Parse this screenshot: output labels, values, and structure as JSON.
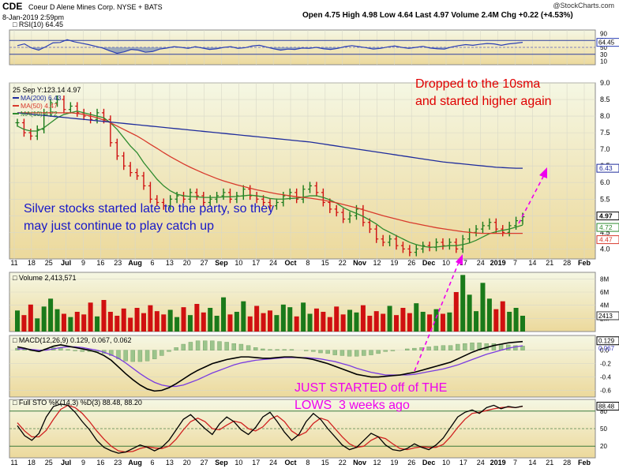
{
  "header": {
    "symbol": "CDE",
    "company": "Coeur D Alene Mines Corp.  NYSE + BATS",
    "date": "8-Jan-2019 2:59pm",
    "quote": "Open 4.75  High 4.98  Low 4.64  Last 4.97  Volume 2.4M  Chg +0.22 (+4.53%)",
    "source": "@StockCharts.com"
  },
  "annotations": {
    "dropped": "Dropped to the 10sma\nand started higher again",
    "silver": "Silver stocks started late to the party, so they\nmay just continue to play catch up",
    "lows": "JUST STARTED off of THE\nLOWS  3 weeks ago"
  },
  "colors": {
    "panel_bg_top": "#f5f7e3",
    "panel_bg_bottom": "#ecd99c",
    "up": "#1a7a1a",
    "down": "#d01010",
    "ma200": "#1f2c9c",
    "ma50": "#d83a2c",
    "ma10": "#2e8b2e",
    "rsi": "#2b3fb5",
    "annotation_red": "#e00000",
    "annotation_blue": "#1818c8",
    "annotation_magenta": "#ee00ee"
  },
  "chart_data": [
    {
      "type": "line",
      "title": "RSI(10) 64.45",
      "ylim": [
        0,
        100
      ],
      "yticks": [
        "90",
        "70",
        "50",
        "30",
        "10"
      ],
      "last_value_label": "64.45",
      "series": [
        {
          "name": "RSI(10)",
          "values": [
            55,
            60,
            48,
            42,
            52,
            63,
            64,
            72,
            66,
            62,
            58,
            53,
            48,
            40,
            33,
            37,
            44,
            42,
            36,
            38,
            45,
            48,
            52,
            50,
            47,
            52,
            48,
            44,
            46,
            50,
            52,
            47,
            49,
            54,
            56,
            51,
            46,
            42,
            45,
            44,
            48,
            47,
            50,
            46,
            44,
            47,
            52,
            55,
            52,
            49,
            45,
            47,
            51,
            54,
            50,
            47,
            50,
            53,
            48,
            46,
            45,
            51,
            55,
            58,
            56,
            59,
            61,
            60,
            56,
            60,
            62,
            64.45
          ]
        }
      ]
    },
    {
      "type": "line",
      "title": "25 Sep Y:123.14  4.97",
      "ylim": [
        3.7,
        9.0
      ],
      "yticks": [
        "9.0",
        "8.5",
        "8.0",
        "7.5",
        "7.0",
        "6.5",
        "6.0",
        "5.5",
        "5.0",
        "4.5",
        "4.0"
      ],
      "xticks": [
        "11",
        "18",
        "25",
        "Jul",
        "9",
        "16",
        "23",
        "Aug",
        "6",
        "13",
        "20",
        "27",
        "Sep",
        "10",
        "17",
        "24",
        "Oct",
        "8",
        "15",
        "22",
        "Nov",
        "12",
        "19",
        "26",
        "Dec",
        "10",
        "17",
        "24",
        "2019",
        "7",
        "14",
        "21",
        "28",
        "Feb"
      ],
      "legend": [
        {
          "name": "MA(200)",
          "value": "6.43"
        },
        {
          "name": "MA(50)",
          "value": "4.47"
        },
        {
          "name": "MA(10)",
          "value": "4.72"
        }
      ],
      "last_labels": {
        "close": "4.97",
        "ma10": "4.72",
        "ma50": "4.47",
        "ma200": "6.43"
      },
      "series": [
        {
          "name": "Close",
          "values": [
            7.8,
            7.5,
            7.4,
            7.6,
            8.1,
            8.4,
            8.5,
            8.2,
            8.3,
            8.1,
            8.0,
            7.9,
            8.1,
            7.9,
            7.2,
            6.8,
            6.5,
            6.3,
            6.2,
            5.9,
            5.5,
            5.4,
            5.3,
            5.5,
            5.6,
            5.5,
            5.7,
            5.6,
            5.4,
            5.5,
            5.6,
            5.7,
            5.5,
            5.6,
            5.8,
            5.6,
            5.5,
            5.4,
            5.3,
            5.4,
            5.6,
            5.7,
            5.5,
            5.8,
            5.9,
            5.7,
            5.4,
            5.2,
            5.1,
            4.9,
            5.0,
            5.2,
            4.8,
            4.6,
            4.3,
            4.2,
            4.3,
            4.1,
            4.0,
            3.9,
            4.0,
            4.1,
            4.05,
            4.2,
            4.1,
            4.2,
            4.0,
            4.3,
            4.5,
            4.6,
            4.7,
            4.8,
            4.6,
            4.5,
            4.7,
            4.85,
            4.97
          ]
        },
        {
          "name": "MA(10)",
          "values": [
            7.7,
            7.6,
            7.55,
            7.55,
            7.65,
            7.8,
            7.95,
            8.05,
            8.1,
            8.15,
            8.1,
            8.05,
            8.0,
            7.95,
            7.8,
            7.6,
            7.35,
            7.1,
            6.9,
            6.6,
            6.35,
            6.1,
            5.9,
            5.75,
            5.65,
            5.6,
            5.58,
            5.57,
            5.55,
            5.55,
            5.55,
            5.57,
            5.57,
            5.58,
            5.6,
            5.62,
            5.6,
            5.57,
            5.52,
            5.5,
            5.5,
            5.52,
            5.53,
            5.56,
            5.6,
            5.6,
            5.55,
            5.48,
            5.38,
            5.25,
            5.15,
            5.07,
            4.98,
            4.87,
            4.75,
            4.6,
            4.5,
            4.4,
            4.3,
            4.2,
            4.13,
            4.08,
            4.05,
            4.06,
            4.08,
            4.1,
            4.1,
            4.13,
            4.18,
            4.26,
            4.36,
            4.46,
            4.52,
            4.56,
            4.6,
            4.66,
            4.72
          ]
        },
        {
          "name": "MA(50)",
          "values": [
            8.1,
            8.1,
            8.1,
            8.1,
            8.1,
            8.1,
            8.1,
            8.1,
            8.1,
            8.08,
            8.05,
            8.0,
            7.95,
            7.88,
            7.8,
            7.7,
            7.6,
            7.5,
            7.4,
            7.28,
            7.15,
            7.03,
            6.9,
            6.78,
            6.67,
            6.56,
            6.46,
            6.37,
            6.28,
            6.2,
            6.12,
            6.05,
            5.99,
            5.93,
            5.88,
            5.83,
            5.78,
            5.74,
            5.7,
            5.66,
            5.63,
            5.6,
            5.57,
            5.55,
            5.53,
            5.5,
            5.47,
            5.43,
            5.39,
            5.34,
            5.29,
            5.24,
            5.18,
            5.12,
            5.06,
            5.0,
            4.95,
            4.9,
            4.85,
            4.8,
            4.76,
            4.72,
            4.68,
            4.64,
            4.61,
            4.58,
            4.55,
            4.52,
            4.5,
            4.48,
            4.47,
            4.47,
            4.47,
            4.47,
            4.47,
            4.47,
            4.47
          ]
        },
        {
          "name": "MA(200)",
          "values": [
            8.1,
            8.08,
            8.06,
            8.04,
            8.02,
            8.0,
            7.98,
            7.96,
            7.94,
            7.92,
            7.9,
            7.88,
            7.86,
            7.84,
            7.82,
            7.8,
            7.78,
            7.76,
            7.74,
            7.72,
            7.7,
            7.68,
            7.66,
            7.64,
            7.62,
            7.6,
            7.58,
            7.56,
            7.54,
            7.52,
            7.5,
            7.48,
            7.46,
            7.44,
            7.42,
            7.4,
            7.38,
            7.36,
            7.34,
            7.32,
            7.3,
            7.28,
            7.26,
            7.24,
            7.22,
            7.19,
            7.16,
            7.13,
            7.1,
            7.07,
            7.04,
            7.01,
            6.98,
            6.95,
            6.92,
            6.89,
            6.86,
            6.83,
            6.8,
            6.77,
            6.74,
            6.71,
            6.68,
            6.65,
            6.62,
            6.6,
            6.58,
            6.56,
            6.54,
            6.52,
            6.5,
            6.48,
            6.46,
            6.45,
            6.44,
            6.43,
            6.43
          ]
        }
      ]
    },
    {
      "type": "bar",
      "title": "Volume 2,413,571",
      "ylim": [
        0,
        9
      ],
      "yticks": [
        "8M",
        "6M",
        "4M",
        "2M"
      ],
      "last_value_label": "2413",
      "series": [
        {
          "name": "Volume (M)",
          "values": [
            3.2,
            2.5,
            4.1,
            2.0,
            3.8,
            5.0,
            3.4,
            2.7,
            2.2,
            3.0,
            2.6,
            4.4,
            2.3,
            4.8,
            3.0,
            2.4,
            3.5,
            2.1,
            3.6,
            2.8,
            4.0,
            3.1,
            2.6,
            3.3,
            2.2,
            3.7,
            2.5,
            4.2,
            2.9,
            3.6,
            2.4,
            5.2,
            2.6,
            3.0,
            4.6,
            2.3,
            3.9,
            2.8,
            3.2,
            2.5,
            4.1,
            3.7,
            2.3,
            4.4,
            2.7,
            3.5,
            3.0,
            2.2,
            3.8,
            2.6,
            3.3,
            2.9,
            4.0,
            2.4,
            3.1,
            2.7,
            3.9,
            2.5,
            3.6,
            2.8,
            4.3,
            3.0,
            2.6,
            3.4,
            2.7,
            2.9,
            6.0,
            8.6,
            5.6,
            3.1,
            7.4,
            5.0,
            3.4,
            4.6,
            3.0,
            3.6,
            2.4
          ]
        }
      ]
    },
    {
      "type": "line",
      "title": "MACD(12,26,9) 0.129, 0.067, 0.062",
      "ylim": [
        -0.7,
        0.22
      ],
      "yticks": [
        "0.0",
        "-0.2",
        "-0.4",
        "-0.6"
      ],
      "last_labels": {
        "macd": "0.129",
        "signal": "0.067"
      },
      "series": [
        {
          "name": "MACD",
          "values": [
            0.05,
            0.03,
            0.0,
            -0.02,
            0.02,
            0.06,
            0.08,
            0.06,
            0.04,
            0.02,
            0.0,
            -0.03,
            -0.08,
            -0.15,
            -0.25,
            -0.35,
            -0.44,
            -0.52,
            -0.58,
            -0.61,
            -0.6,
            -0.56,
            -0.5,
            -0.43,
            -0.36,
            -0.3,
            -0.25,
            -0.2,
            -0.17,
            -0.14,
            -0.12,
            -0.1,
            -0.1,
            -0.11,
            -0.12,
            -0.12,
            -0.11,
            -0.1,
            -0.1,
            -0.11,
            -0.12,
            -0.14,
            -0.17,
            -0.2,
            -0.24,
            -0.28,
            -0.32,
            -0.36,
            -0.38,
            -0.4,
            -0.4,
            -0.39,
            -0.38,
            -0.37,
            -0.35,
            -0.33,
            -0.3,
            -0.27,
            -0.24,
            -0.21,
            -0.18,
            -0.13,
            -0.08,
            -0.03,
            0.01,
            0.04,
            0.07,
            0.09,
            0.11,
            0.12,
            0.129
          ]
        },
        {
          "name": "Signal",
          "values": [
            0.02,
            0.02,
            0.01,
            0.0,
            0.0,
            0.02,
            0.04,
            0.05,
            0.05,
            0.04,
            0.02,
            0.0,
            -0.03,
            -0.07,
            -0.12,
            -0.19,
            -0.27,
            -0.35,
            -0.42,
            -0.48,
            -0.52,
            -0.54,
            -0.54,
            -0.52,
            -0.48,
            -0.44,
            -0.39,
            -0.34,
            -0.3,
            -0.26,
            -0.22,
            -0.19,
            -0.17,
            -0.15,
            -0.14,
            -0.13,
            -0.12,
            -0.11,
            -0.11,
            -0.11,
            -0.11,
            -0.12,
            -0.13,
            -0.15,
            -0.17,
            -0.2,
            -0.23,
            -0.27,
            -0.3,
            -0.33,
            -0.35,
            -0.37,
            -0.37,
            -0.37,
            -0.37,
            -0.36,
            -0.34,
            -0.32,
            -0.3,
            -0.28,
            -0.25,
            -0.22,
            -0.18,
            -0.14,
            -0.1,
            -0.06,
            -0.03,
            0.0,
            0.03,
            0.05,
            0.067
          ]
        }
      ]
    },
    {
      "type": "line",
      "title": "Full STO %K(14,3) %D(3) 88.48, 88.20",
      "ylim": [
        0,
        100
      ],
      "yticks": [
        "80",
        "50",
        "20"
      ],
      "last_labels": {
        "k": "88.48"
      },
      "series": [
        {
          "name": "%K",
          "values": [
            55,
            38,
            30,
            42,
            70,
            88,
            92,
            90,
            78,
            62,
            48,
            30,
            18,
            12,
            8,
            10,
            16,
            22,
            18,
            12,
            18,
            30,
            48,
            66,
            74,
            62,
            50,
            40,
            58,
            70,
            62,
            48,
            40,
            52,
            70,
            78,
            62,
            44,
            30,
            40,
            62,
            76,
            66,
            50,
            36,
            22,
            14,
            18,
            30,
            42,
            36,
            22,
            14,
            12,
            16,
            24,
            18,
            14,
            22,
            34,
            52,
            70,
            78,
            82,
            76,
            86,
            90,
            84,
            88,
            86,
            88.48
          ]
        },
        {
          "name": "%D",
          "values": [
            60,
            46,
            36,
            36,
            47,
            66,
            83,
            90,
            86,
            76,
            62,
            46,
            32,
            20,
            12,
            10,
            11,
            16,
            19,
            17,
            16,
            20,
            32,
            48,
            62,
            68,
            62,
            50,
            48,
            56,
            63,
            60,
            50,
            46,
            53,
            66,
            72,
            62,
            46,
            38,
            44,
            59,
            68,
            64,
            50,
            36,
            24,
            18,
            20,
            30,
            36,
            33,
            24,
            16,
            14,
            17,
            19,
            18,
            18,
            23,
            36,
            52,
            66,
            76,
            78,
            81,
            84,
            86,
            87,
            86,
            88.2
          ]
        }
      ]
    }
  ]
}
